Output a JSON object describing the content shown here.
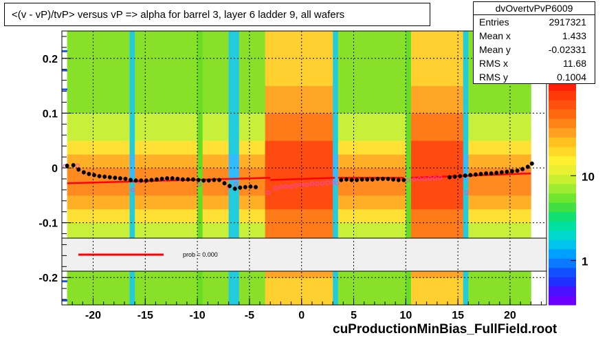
{
  "title": "<(v - vP)/tvP> versus   vP => alpha for barrel 3, layer 6 ladder 9, all wafers",
  "stats": {
    "name": "dvOvertvPvP6009",
    "rows": [
      {
        "label": "Entries",
        "value": "2917321"
      },
      {
        "label": "Mean x",
        "value": "1.433"
      },
      {
        "label": "Mean y",
        "value": "-0.02331"
      },
      {
        "label": "RMS x",
        "value": "11.68"
      },
      {
        "label": "RMS y",
        "value": "0.1004"
      }
    ]
  },
  "footer": "cuProductionMinBias_FullField.root",
  "legend": {
    "text": "prob = 0.000",
    "line_color": "#ff0000"
  },
  "colors": {
    "grid": "#000000",
    "fit": "#ff0000",
    "profile": "#000000",
    "alt_points": "#ff44cc",
    "legend_bg": "#f0f0f0"
  },
  "chart_data": {
    "type": "heatmap",
    "xlim": [
      -23,
      23.5
    ],
    "ylim": [
      -0.25,
      0.25
    ],
    "x_ticks": [
      -20,
      -15,
      -10,
      -5,
      0,
      5,
      10,
      15,
      20
    ],
    "x_tick_labels": [
      "-20",
      "-15",
      "-10",
      "-5",
      "0",
      "5",
      "10",
      "15",
      "20"
    ],
    "y_ticks": [
      -0.2,
      -0.1,
      0,
      0.1,
      0.2
    ],
    "y_tick_labels": [
      "-0.2",
      "-0.1",
      "0",
      "0.1",
      "0.2"
    ],
    "grid": true,
    "colorbar": {
      "scale": "log",
      "ticks": [
        1,
        10
      ],
      "tick_labels": [
        "1",
        "10"
      ],
      "range": [
        0.3,
        130
      ]
    },
    "stripes": [
      {
        "x0": -16.5,
        "x1": -15.8,
        "kind": "cyan"
      },
      {
        "x0": -10.1,
        "x1": -9.5,
        "kind": "green"
      },
      {
        "x0": -7.2,
        "x1": -6.2,
        "kind": "cyan"
      },
      {
        "x0": 3.1,
        "x1": 3.6,
        "kind": "cyan"
      },
      {
        "x0": 9.9,
        "x1": 10.6,
        "kind": "green"
      },
      {
        "x0": 15.5,
        "x1": 16.1,
        "kind": "cyan"
      }
    ],
    "fit_segments": [
      {
        "x0": -22.5,
        "x1": -3.0,
        "y0": -0.028,
        "y1": -0.018
      },
      {
        "x0": -3.0,
        "x1": 3.2,
        "y0": -0.022,
        "y1": -0.018
      },
      {
        "x0": 3.5,
        "x1": 9.8,
        "y0": -0.018,
        "y1": -0.018
      },
      {
        "x0": 10.5,
        "x1": 22.0,
        "y0": -0.018,
        "y1": -0.01
      }
    ],
    "profile": {
      "x": [
        -22.5,
        -21.9,
        -21.4,
        -20.9,
        -20.4,
        -19.9,
        -19.4,
        -18.9,
        -18.4,
        -17.9,
        -17.4,
        -16.9,
        -16.4,
        -15.9,
        -15.4,
        -14.9,
        -14.4,
        -13.9,
        -13.4,
        -12.9,
        -12.4,
        -11.9,
        -11.4,
        -10.9,
        -10.4,
        -9.9,
        -9.4,
        -8.9,
        -8.4,
        -7.9,
        -7.4,
        -6.9,
        -6.4,
        -5.9,
        -5.4,
        -4.9,
        -4.4,
        3.8,
        4.3,
        4.8,
        5.3,
        5.8,
        6.3,
        6.8,
        7.3,
        7.8,
        8.3,
        8.8,
        9.3,
        9.8,
        14.2,
        14.7,
        15.2,
        15.7,
        16.2,
        16.7,
        17.2,
        17.7,
        18.2,
        18.7,
        19.2,
        19.7,
        20.2,
        20.7,
        21.2,
        21.7,
        22.1
      ],
      "y": [
        0.004,
        0.005,
        -0.003,
        -0.008,
        -0.011,
        -0.013,
        -0.015,
        -0.016,
        -0.017,
        -0.018,
        -0.019,
        -0.02,
        -0.022,
        -0.023,
        -0.023,
        -0.023,
        -0.022,
        -0.021,
        -0.02,
        -0.019,
        -0.019,
        -0.02,
        -0.021,
        -0.021,
        -0.021,
        -0.022,
        -0.023,
        -0.023,
        -0.022,
        -0.022,
        -0.028,
        -0.033,
        -0.038,
        -0.036,
        -0.035,
        -0.034,
        -0.035,
        -0.022,
        -0.021,
        -0.022,
        -0.022,
        -0.021,
        -0.021,
        -0.021,
        -0.02,
        -0.02,
        -0.02,
        -0.021,
        -0.022,
        -0.022,
        -0.017,
        -0.016,
        -0.015,
        -0.014,
        -0.013,
        -0.012,
        -0.011,
        -0.01,
        -0.01,
        -0.009,
        -0.008,
        -0.007,
        -0.006,
        -0.005,
        -0.002,
        0.002,
        0.008
      ]
    },
    "alt_points": {
      "x": [
        -22.7,
        -21.5,
        -16.2,
        -15.6,
        -13.2,
        -11.8,
        -9.8,
        -7.0,
        -6.3,
        -3.2,
        -2.5,
        -2.0,
        -1.5,
        -1.0,
        -0.5,
        0.0,
        0.5,
        1.0,
        1.5,
        2.0,
        2.5,
        3.0,
        3.4,
        10.2,
        10.8,
        11.3,
        11.8,
        12.3,
        12.8,
        13.3,
        15.8,
        21.2
      ],
      "y": [
        0.003,
        0.004,
        -0.04,
        -0.025,
        -0.022,
        -0.021,
        -0.03,
        -0.035,
        -0.03,
        -0.045,
        -0.037,
        -0.035,
        -0.034,
        -0.034,
        -0.032,
        -0.031,
        -0.031,
        -0.029,
        -0.029,
        -0.028,
        -0.027,
        -0.027,
        -0.028,
        -0.022,
        -0.021,
        -0.02,
        -0.02,
        -0.019,
        -0.019,
        -0.018,
        -0.045,
        -0.005
      ]
    }
  }
}
